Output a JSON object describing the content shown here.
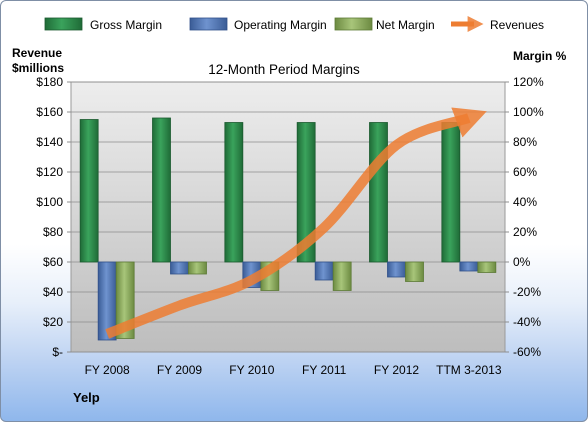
{
  "chart_data": {
    "type": "bar",
    "title": "12-Month Period Margins",
    "company": "Yelp",
    "left_axis_label_line1": "Revenue",
    "left_axis_label_line2": "$millions",
    "right_axis_label": "Margin %",
    "categories": [
      "FY 2008",
      "FY 2009",
      "FY 2010",
      "FY 2011",
      "FY 2012",
      "TTM 3-2013"
    ],
    "left_ylim": [
      0,
      180
    ],
    "right_ylim": [
      -60,
      120
    ],
    "left_ticks": [
      "$-",
      "$20",
      "$40",
      "$60",
      "$80",
      "$100",
      "$120",
      "$140",
      "$160",
      "$180"
    ],
    "right_ticks": [
      "-60%",
      "-40%",
      "-20%",
      "0%",
      "20%",
      "40%",
      "60%",
      "80%",
      "100%",
      "120%"
    ],
    "series": [
      {
        "name": "Gross Margin",
        "axis": "right",
        "color": "#2e8b4a",
        "values": [
          95,
          96,
          93,
          93,
          93,
          93
        ]
      },
      {
        "name": "Operating Margin",
        "axis": "right",
        "color": "#4f75b8",
        "values": [
          -52,
          -8,
          -17,
          -12,
          -10,
          -6
        ]
      },
      {
        "name": "Net Margin",
        "axis": "right",
        "color": "#8cac5c",
        "values": [
          -51,
          -8,
          -19,
          -19,
          -13,
          -7
        ]
      },
      {
        "name": "Revenues",
        "axis": "left",
        "color": "#ed7d31",
        "values": [
          12,
          31,
          48,
          83,
          138,
          156
        ]
      }
    ],
    "grid": true,
    "legend_position": "top"
  }
}
